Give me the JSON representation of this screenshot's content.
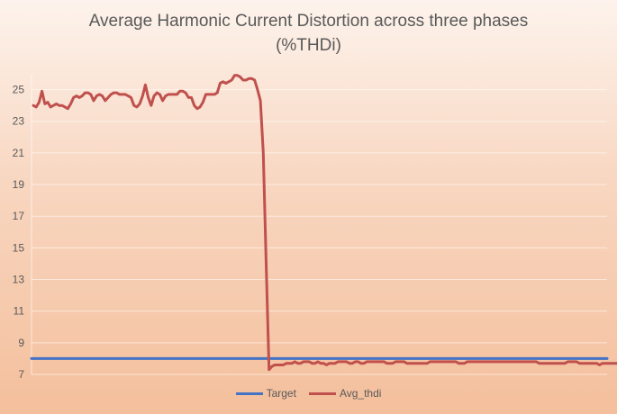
{
  "chart_data": {
    "type": "line",
    "title": "Average Harmonic Current Distortion across three phases",
    "subtitle": "(%THDi)",
    "xlabel": "",
    "ylabel": "",
    "ylim": [
      7,
      26
    ],
    "yticks": [
      7,
      9,
      11,
      13,
      15,
      17,
      19,
      21,
      23,
      25
    ],
    "grid": true,
    "legend": "bottom",
    "n_points": 200,
    "series": [
      {
        "name": "Target",
        "color": "#4472c4",
        "values": [
          8,
          8
        ]
      },
      {
        "name": "Avg_thdi",
        "color": "#c0504d",
        "values": [
          24.0,
          23.9,
          24.2,
          24.9,
          24.1,
          24.2,
          23.9,
          24.0,
          24.1,
          24.0,
          24.0,
          23.9,
          23.8,
          24.1,
          24.5,
          24.6,
          24.5,
          24.6,
          24.8,
          24.8,
          24.7,
          24.3,
          24.6,
          24.7,
          24.6,
          24.3,
          24.5,
          24.7,
          24.8,
          24.8,
          24.7,
          24.7,
          24.7,
          24.6,
          24.5,
          24.0,
          23.9,
          24.1,
          24.6,
          25.3,
          24.5,
          24.0,
          24.6,
          24.8,
          24.7,
          24.3,
          24.6,
          24.7,
          24.7,
          24.7,
          24.7,
          24.9,
          24.9,
          24.8,
          24.5,
          24.5,
          24.0,
          23.8,
          23.9,
          24.2,
          24.7,
          24.7,
          24.7,
          24.7,
          24.8,
          25.4,
          25.5,
          25.4,
          25.5,
          25.6,
          25.9,
          25.9,
          25.8,
          25.6,
          25.6,
          25.7,
          25.7,
          25.6,
          25.0,
          24.3,
          21.0,
          14.0,
          7.3,
          7.5,
          7.6,
          7.6,
          7.6,
          7.6,
          7.7,
          7.7,
          7.7,
          7.8,
          7.7,
          7.7,
          7.8,
          7.8,
          7.8,
          7.7,
          7.7,
          7.8,
          7.7,
          7.7,
          7.6,
          7.7,
          7.7,
          7.7,
          7.8,
          7.8,
          7.8,
          7.8,
          7.7,
          7.7,
          7.8,
          7.8,
          7.7,
          7.7,
          7.8,
          7.8,
          7.8,
          7.8,
          7.8,
          7.8,
          7.8,
          7.7,
          7.7,
          7.7,
          7.8,
          7.8,
          7.8,
          7.8,
          7.7,
          7.7,
          7.7,
          7.7,
          7.7,
          7.7,
          7.7,
          7.7,
          7.8,
          7.8,
          7.8,
          7.8,
          7.8,
          7.8,
          7.8,
          7.8,
          7.8,
          7.8,
          7.7,
          7.7,
          7.7,
          7.8,
          7.8,
          7.8,
          7.8,
          7.8,
          7.8,
          7.8,
          7.8,
          7.8,
          7.8,
          7.8,
          7.8,
          7.8,
          7.8,
          7.8,
          7.8,
          7.8,
          7.8,
          7.8,
          7.8,
          7.8,
          7.8,
          7.8,
          7.8,
          7.8,
          7.7,
          7.7,
          7.7,
          7.7,
          7.7,
          7.7,
          7.7,
          7.7,
          7.7,
          7.7,
          7.8,
          7.8,
          7.8,
          7.8,
          7.7,
          7.7,
          7.7,
          7.7,
          7.7,
          7.7,
          7.7,
          7.6,
          7.7,
          7.7,
          7.7,
          7.7,
          7.7,
          7.7
        ]
      }
    ]
  }
}
